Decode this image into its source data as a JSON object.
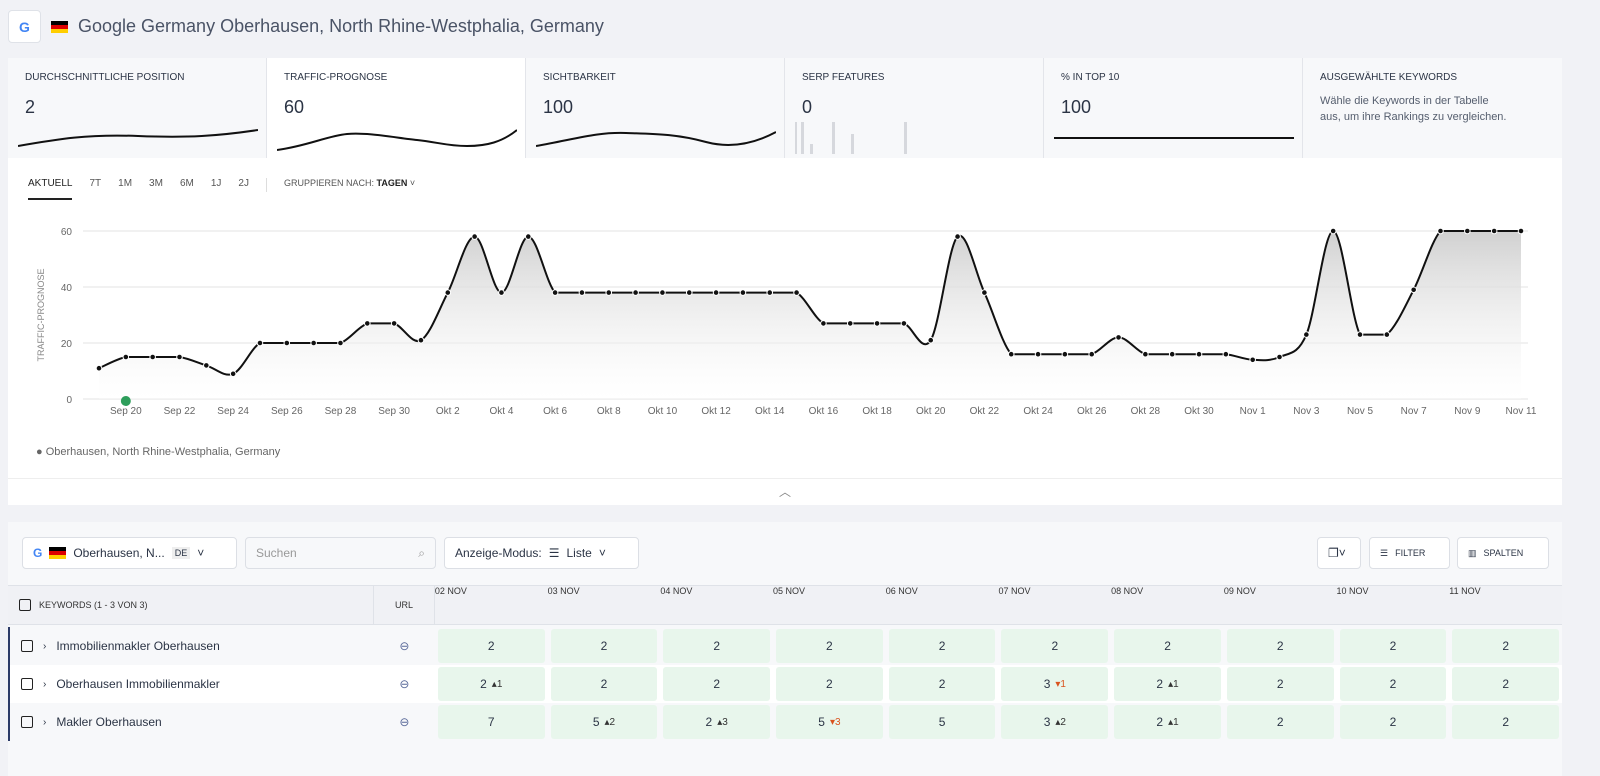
{
  "header": {
    "title": "Google Germany Oberhausen, North Rhine-Westphalia, Germany",
    "engine_icon": "G"
  },
  "metrics": [
    {
      "label": "DURCHSCHNITTLICHE POSITION",
      "value": "2"
    },
    {
      "label": "TRAFFIC-PROGNOSE",
      "value": "60"
    },
    {
      "label": "SICHTBARKEIT",
      "value": "100"
    },
    {
      "label": "SERP FEATURES",
      "value": "0"
    },
    {
      "label": "% IN TOP 10",
      "value": "100"
    },
    {
      "label": "AUSGEWÄHLTE KEYWORDS",
      "description": "Wähle die Keywords in der Tabelle aus, um ihre Rankings zu vergleichen."
    }
  ],
  "chart_controls": {
    "ranges": [
      "AKTUELL",
      "7T",
      "1M",
      "3M",
      "6M",
      "1J",
      "2J"
    ],
    "active": "AKTUELL",
    "group_label": "GRUPPIEREN NACH:",
    "group_value": "TAGEN"
  },
  "chart_data": {
    "type": "area",
    "ylabel": "TRAFFIC-PROGNOSE",
    "ylim": [
      0,
      60
    ],
    "yticks": [
      0,
      20,
      40,
      60
    ],
    "grid": true,
    "x_tick_labels": [
      "Sep 20",
      "Sep 22",
      "Sep 24",
      "Sep 26",
      "Sep 28",
      "Sep 30",
      "Okt 2",
      "Okt 4",
      "Okt 6",
      "Okt 8",
      "Okt 10",
      "Okt 12",
      "Okt 14",
      "Okt 16",
      "Okt 18",
      "Okt 20",
      "Okt 22",
      "Okt 24",
      "Okt 26",
      "Okt 28",
      "Okt 30",
      "Nov 1",
      "Nov 3",
      "Nov 5",
      "Nov 7",
      "Nov 9",
      "Nov 11"
    ],
    "x_range": [
      "Sep 19",
      "Nov 11"
    ],
    "series": [
      {
        "name": "Oberhausen, North Rhine-Westphalia, Germany",
        "color": "#111111",
        "values": [
          11,
          15,
          15,
          15,
          12,
          9,
          20,
          20,
          20,
          20,
          27,
          27,
          21,
          38,
          58,
          38,
          58,
          38,
          38,
          38,
          38,
          38,
          38,
          38,
          38,
          38,
          38,
          27,
          27,
          27,
          27,
          21,
          58,
          38,
          16,
          16,
          16,
          16,
          22,
          16,
          16,
          16,
          16,
          14,
          15,
          23,
          60,
          23,
          23,
          39,
          60,
          60,
          60,
          60
        ]
      }
    ],
    "annotation_marker": {
      "date": "Sep 20",
      "color": "#2e9e5b"
    },
    "legend": "bottom-left"
  },
  "toolbar": {
    "location": "Oberhausen, N...",
    "lang": "DE",
    "search_placeholder": "Suchen",
    "mode_label": "Anzeige-Modus:",
    "mode_value": "Liste",
    "filter": "FILTER",
    "columns": "SPALTEN"
  },
  "table": {
    "kw_header": "KEYWORDS (1 - 3 VON 3)",
    "url_header": "URL",
    "dates": [
      "02 NOV",
      "03 NOV",
      "04 NOV",
      "05 NOV",
      "06 NOV",
      "07 NOV",
      "08 NOV",
      "09 NOV",
      "10 NOV",
      "11 NOV"
    ],
    "rows": [
      {
        "keyword": "Immobilienmakler Oberhausen",
        "cells": [
          {
            "v": "2"
          },
          {
            "v": "2"
          },
          {
            "v": "2"
          },
          {
            "v": "2"
          },
          {
            "v": "2"
          },
          {
            "v": "2"
          },
          {
            "v": "2"
          },
          {
            "v": "2"
          },
          {
            "v": "2"
          },
          {
            "v": "2"
          }
        ]
      },
      {
        "keyword": "Oberhausen Immobilienmakler",
        "cells": [
          {
            "v": "2",
            "up": "1"
          },
          {
            "v": "2"
          },
          {
            "v": "2"
          },
          {
            "v": "2"
          },
          {
            "v": "2"
          },
          {
            "v": "3",
            "down": "1"
          },
          {
            "v": "2",
            "up": "1"
          },
          {
            "v": "2"
          },
          {
            "v": "2"
          },
          {
            "v": "2"
          }
        ]
      },
      {
        "keyword": "Makler Oberhausen",
        "cells": [
          {
            "v": "7"
          },
          {
            "v": "5",
            "up": "2"
          },
          {
            "v": "2",
            "up": "3"
          },
          {
            "v": "5",
            "down": "3"
          },
          {
            "v": "5"
          },
          {
            "v": "3",
            "up": "2"
          },
          {
            "v": "2",
            "up": "1"
          },
          {
            "v": "2"
          },
          {
            "v": "2"
          },
          {
            "v": "2"
          }
        ]
      }
    ]
  }
}
